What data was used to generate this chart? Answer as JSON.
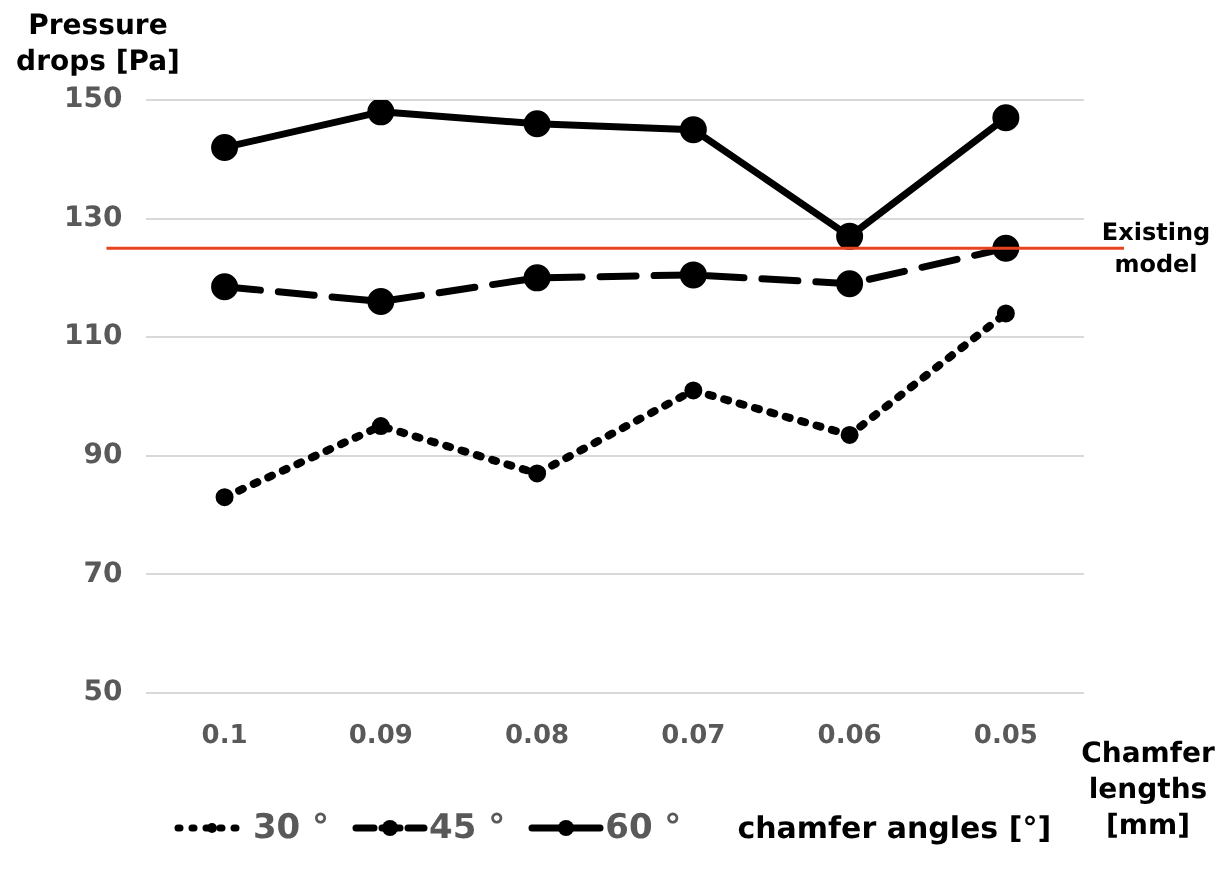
{
  "chart_data": {
    "type": "line",
    "ylabel": "Pressure drops [Pa]",
    "xlabel": "Chamfer lengths [mm]",
    "legend_title": "chamfer angles [°]",
    "categories": [
      "0.1",
      "0.09",
      "0.08",
      "0.07",
      "0.06",
      "0.05"
    ],
    "series": [
      {
        "name": "30 °",
        "color": "#000000",
        "line_style": "dotted",
        "values": [
          83,
          95,
          87,
          101,
          93.5,
          114
        ]
      },
      {
        "name": "45 °",
        "color": "#000000",
        "line_style": "dashed",
        "values": [
          118.5,
          116,
          120,
          120.5,
          119,
          125
        ]
      },
      {
        "name": "60 °",
        "color": "#000000",
        "line_style": "solid",
        "values": [
          142,
          148,
          146,
          145,
          127,
          147
        ]
      }
    ],
    "ylim": [
      50,
      150
    ],
    "yticks": [
      50,
      70,
      90,
      110,
      130,
      150
    ],
    "grid": "y",
    "marker": "circle",
    "legend": "bottom",
    "ref_lines": [
      {
        "axis": "y",
        "value": 125,
        "label": "Existing model",
        "color": "#e8431c"
      }
    ]
  }
}
